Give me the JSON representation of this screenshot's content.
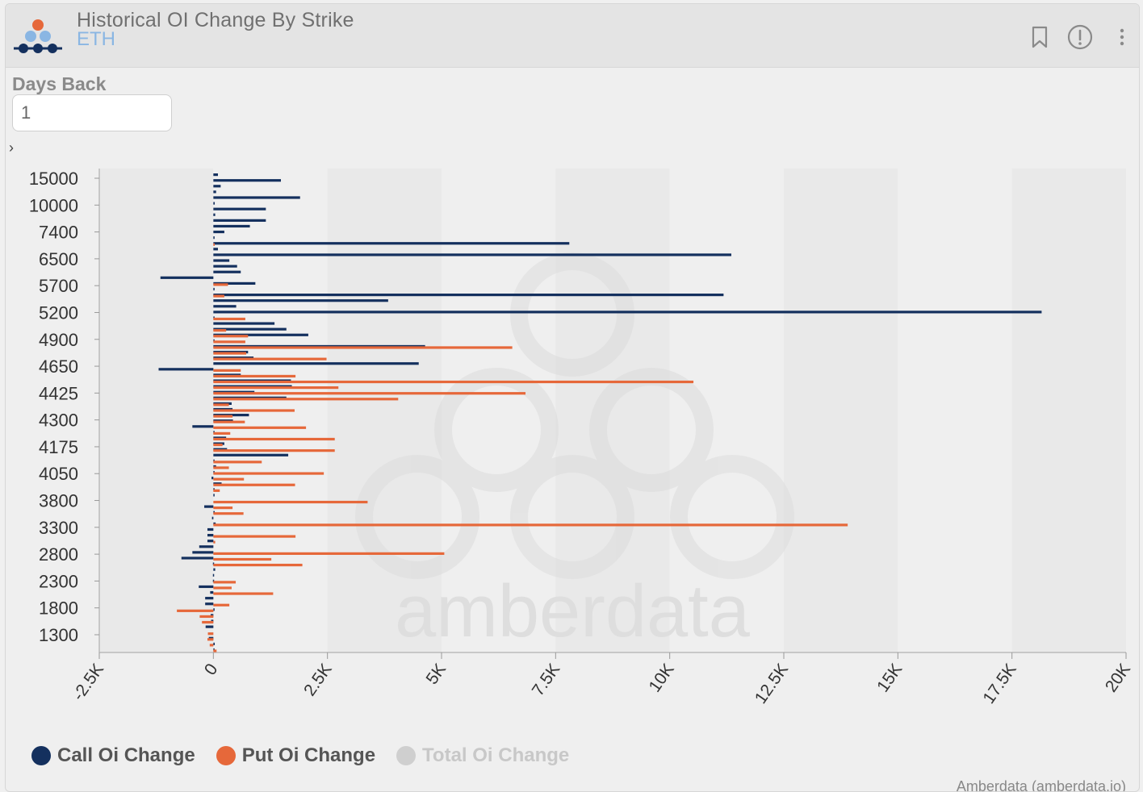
{
  "header": {
    "title": "Historical OI Change By Strike",
    "subtitle": "ETH",
    "icons": [
      "bookmark-icon",
      "info-icon",
      "more-icon"
    ]
  },
  "controls": {
    "days_back_label": "Days Back",
    "days_back_value": "1",
    "expander_glyph": "›"
  },
  "watermark_text": "amberdata",
  "credit": "Amberdata  (amberdata.io)",
  "colors": {
    "call": "#14305e",
    "put": "#e6683a",
    "total": "#cfcfcf",
    "title": "#707070",
    "subtitle": "#8ab6e3"
  },
  "legend": [
    {
      "label": "Call Oi Change",
      "color": "#14305e",
      "active": true
    },
    {
      "label": "Put Oi Change",
      "color": "#e6683a",
      "active": true
    },
    {
      "label": "Total Oi Change",
      "color": "#cfcfcf",
      "active": false
    }
  ],
  "chart_data": {
    "type": "bar",
    "orientation": "horizontal",
    "xlim": [
      -2500,
      20000
    ],
    "x_ticks": [
      "-2.5K",
      "0",
      "2.5K",
      "5K",
      "7.5K",
      "10K",
      "12.5K",
      "15K",
      "17.5K",
      "20K"
    ],
    "y_tick_labels": [
      "15000",
      "10000",
      "7400",
      "6500",
      "5700",
      "5200",
      "4900",
      "4650",
      "4425",
      "4300",
      "4175",
      "4050",
      "3800",
      "3300",
      "2800",
      "2300",
      "1800",
      "1300"
    ],
    "grid": "alternating vertical bands",
    "legend_position": "bottom-left",
    "series": [
      {
        "name": "Call Oi Change",
        "values": [
          100,
          1480,
          160,
          60,
          1900,
          30,
          1150,
          40,
          1150,
          800,
          240,
          20,
          7800,
          100,
          11350,
          350,
          520,
          600,
          -1160,
          920,
          10,
          11180,
          3830,
          500,
          18150,
          20,
          1340,
          1600,
          2080,
          20,
          4640,
          760,
          880,
          4500,
          -1200,
          600,
          1700,
          1720,
          900,
          1600,
          400,
          420,
          780,
          430,
          -460,
          20,
          280,
          240,
          300,
          1640,
          20,
          60,
          20,
          -40,
          180,
          20,
          10,
          0,
          -200,
          30,
          -30,
          50,
          -130,
          -130,
          -130,
          -310,
          -460,
          -700,
          -10,
          40,
          -10,
          -10,
          -320,
          -70,
          -180,
          -180,
          10,
          -60,
          -50,
          -170,
          0,
          -100,
          30,
          20
        ]
      },
      {
        "name": "Put Oi Change",
        "values": [
          0,
          0,
          0,
          0,
          0,
          0,
          0,
          0,
          0,
          0,
          0,
          0,
          30,
          0,
          0,
          0,
          0,
          0,
          0,
          320,
          0,
          240,
          0,
          0,
          0,
          700,
          0,
          280,
          760,
          700,
          6550,
          720,
          2480,
          0,
          600,
          1800,
          10520,
          2740,
          6840,
          4050,
          340,
          1780,
          420,
          690,
          2030,
          370,
          2660,
          200,
          2660,
          0,
          1060,
          340,
          2420,
          670,
          1790,
          140,
          0,
          3380,
          420,
          660,
          0,
          13900,
          0,
          1800,
          40,
          0,
          5060,
          1270,
          1950,
          0,
          0,
          490,
          400,
          1310,
          0,
          350,
          -800,
          -300,
          -250,
          0,
          -120,
          -130,
          -80,
          70
        ]
      }
    ]
  }
}
